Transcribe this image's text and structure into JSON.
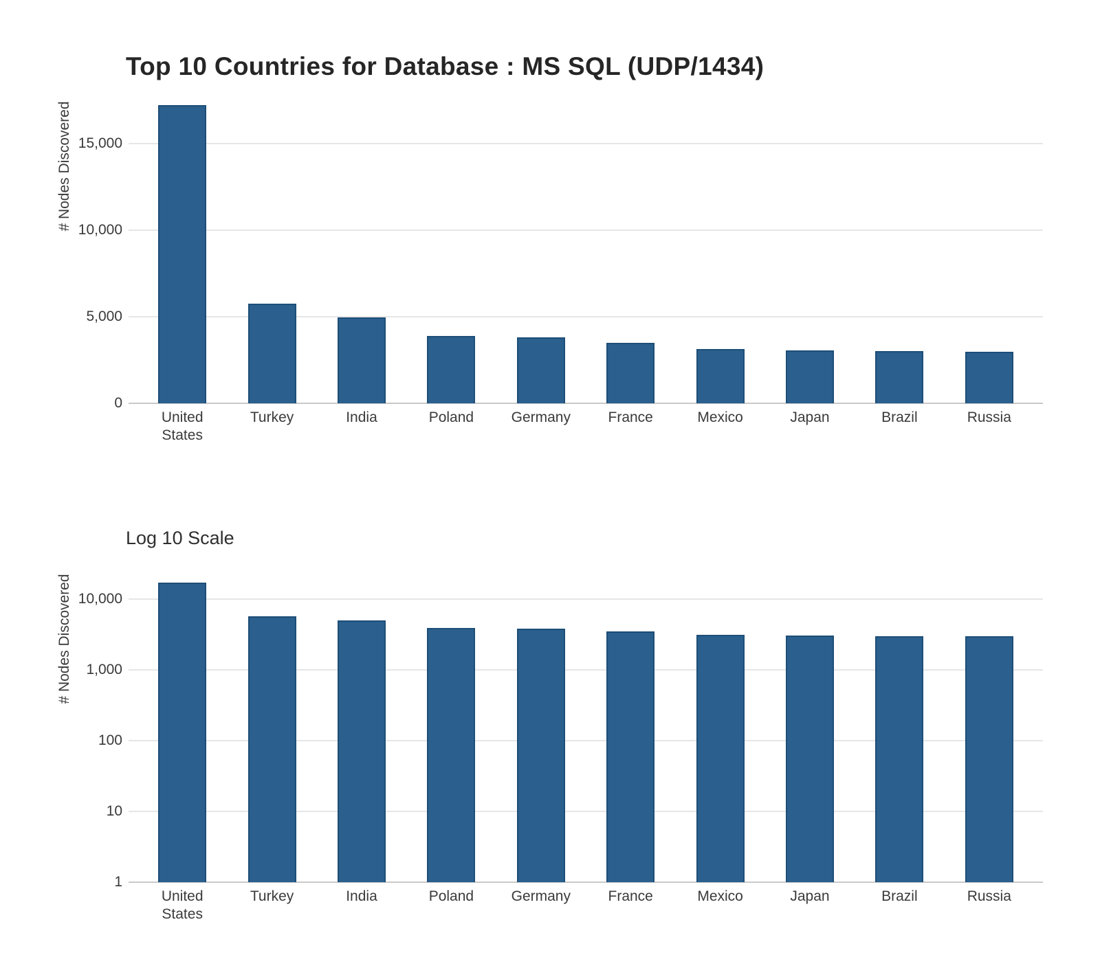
{
  "title": "Top 10 Countries for Database : MS SQL (UDP/1434)",
  "subtitle": "Log 10 Scale",
  "colors": {
    "bar_fill": "#2a5f8e",
    "bar_edge": "#1d4e77",
    "gridline": "#e6e6e6",
    "axis_line": "#c9c9c9",
    "text": "#3a3a3a",
    "title_text": "#262626",
    "background": "#ffffff"
  },
  "chart_data": [
    {
      "type": "bar",
      "title": "Top 10 Countries for Database : MS SQL (UDP/1434)",
      "xlabel": "",
      "ylabel": "# Nodes Discovered",
      "scale": "linear",
      "grid": true,
      "legend": "none",
      "categories": [
        "United States",
        "Turkey",
        "India",
        "Poland",
        "Germany",
        "France",
        "Mexico",
        "Japan",
        "Brazil",
        "Russia"
      ],
      "tick_labels": [
        "United\nStates",
        "Turkey",
        "India",
        "Poland",
        "Germany",
        "France",
        "Mexico",
        "Japan",
        "Brazil",
        "Russia"
      ],
      "values": [
        17250,
        5750,
        4950,
        3900,
        3820,
        3500,
        3150,
        3050,
        3010,
        2980
      ],
      "yticks": [
        0,
        5000,
        10000,
        15000
      ],
      "ylim": [
        0,
        17750
      ]
    },
    {
      "type": "bar",
      "title": "Log 10 Scale",
      "xlabel": "",
      "ylabel": "# Nodes Discovered",
      "scale": "log10",
      "grid": true,
      "legend": "none",
      "categories": [
        "United States",
        "Turkey",
        "India",
        "Poland",
        "Germany",
        "France",
        "Mexico",
        "Japan",
        "Brazil",
        "Russia"
      ],
      "tick_labels": [
        "United\nStates",
        "Turkey",
        "India",
        "Poland",
        "Germany",
        "France",
        "Mexico",
        "Japan",
        "Brazil",
        "Russia"
      ],
      "values": [
        17250,
        5750,
        4950,
        3900,
        3820,
        3500,
        3150,
        3050,
        3010,
        2980
      ],
      "yticks": [
        1,
        10,
        100,
        1000,
        10000
      ],
      "ylim": [
        1,
        25580
      ]
    }
  ]
}
